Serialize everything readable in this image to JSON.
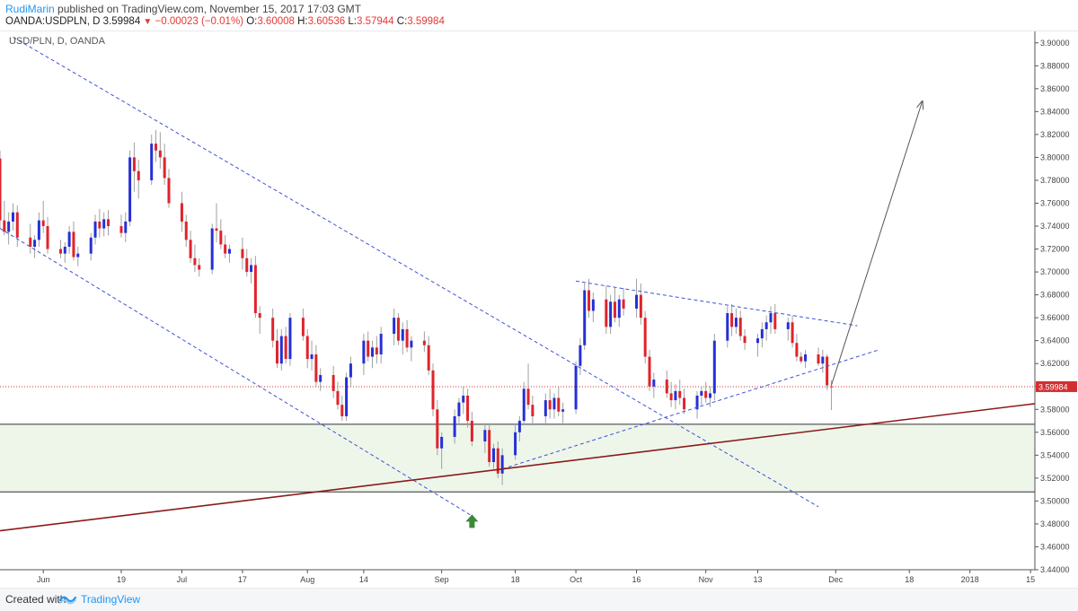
{
  "header": {
    "author": "RudiMarin",
    "published_text": "published on TradingView.com, November 15, 2017 17:03 GMT",
    "symbol": "OANDA:USDPLN, D",
    "last_price": "3.59984",
    "change": "−0.00023 (−0.01%)",
    "o_label": "O:",
    "o_value": "3.60008",
    "h_label": "H:",
    "h_value": "3.60536",
    "l_label": "L:",
    "l_value": "3.57944",
    "c_label": "C:",
    "c_value": "3.59984"
  },
  "footer": {
    "created_with": "Created with",
    "brand": "TradingView"
  },
  "chart_data": {
    "type": "candlestick",
    "symbol_label": "USD/PLN, D, OANDA",
    "ylim": [
      3.44,
      3.91
    ],
    "yticks": [
      3.44,
      3.46,
      3.48,
      3.5,
      3.52,
      3.54,
      3.56,
      3.58,
      3.6,
      3.62,
      3.64,
      3.66,
      3.68,
      3.7,
      3.72,
      3.74,
      3.76,
      3.78,
      3.8,
      3.82,
      3.84,
      3.86,
      3.88,
      3.9
    ],
    "ytick_labels": [
      "3.44000",
      "3.46000",
      "3.48000",
      "3.50000",
      "3.52000",
      "3.54000",
      "3.56000",
      "3.58000",
      "3.60000",
      "3.62000",
      "3.64000",
      "3.66000",
      "3.68000",
      "3.70000",
      "3.72000",
      "3.74000",
      "3.76000",
      "3.78000",
      "3.80000",
      "3.82000",
      "3.84000",
      "3.86000",
      "3.88000",
      "3.90000"
    ],
    "x_range": [
      "2017-05-22",
      "2018-01-16"
    ],
    "x_labels": [
      {
        "date": "2017-06-01",
        "label": "Jun"
      },
      {
        "date": "2017-06-19",
        "label": "19"
      },
      {
        "date": "2017-07-03",
        "label": "Jul"
      },
      {
        "date": "2017-07-17",
        "label": "17"
      },
      {
        "date": "2017-08-01",
        "label": "Aug"
      },
      {
        "date": "2017-08-14",
        "label": "14"
      },
      {
        "date": "2017-09-01",
        "label": "Sep"
      },
      {
        "date": "2017-09-18",
        "label": "18"
      },
      {
        "date": "2017-10-02",
        "label": "Oct"
      },
      {
        "date": "2017-10-16",
        "label": "16"
      },
      {
        "date": "2017-11-01",
        "label": "Nov"
      },
      {
        "date": "2017-11-13",
        "label": "13"
      },
      {
        "date": "2017-12-01",
        "label": "Dec"
      },
      {
        "date": "2017-12-18",
        "label": "18"
      },
      {
        "date": "2018-01-01",
        "label": "2018"
      },
      {
        "date": "2018-01-15",
        "label": "15"
      }
    ],
    "current_price": 3.59984,
    "current_price_label": "3.59984",
    "bullish_color": "#2530d6",
    "bearish_color": "#e0232b",
    "wick_color": "#a0a0a0",
    "candles": [
      [
        "2017-05-22",
        3.799,
        3.806,
        3.738,
        3.745
      ],
      [
        "2017-05-23",
        3.745,
        3.762,
        3.732,
        3.735
      ],
      [
        "2017-05-24",
        3.735,
        3.752,
        3.724,
        3.744
      ],
      [
        "2017-05-25",
        3.744,
        3.76,
        3.736,
        3.752
      ],
      [
        "2017-05-26",
        3.752,
        3.758,
        3.722,
        3.73
      ],
      [
        "2017-05-29",
        3.73,
        3.742,
        3.716,
        3.722
      ],
      [
        "2017-05-30",
        3.722,
        3.732,
        3.712,
        3.728
      ],
      [
        "2017-05-31",
        3.728,
        3.752,
        3.722,
        3.745
      ],
      [
        "2017-06-01",
        3.745,
        3.762,
        3.734,
        3.74
      ],
      [
        "2017-06-02",
        3.74,
        3.748,
        3.716,
        3.72
      ],
      [
        "2017-06-05",
        3.72,
        3.728,
        3.712,
        3.716
      ],
      [
        "2017-06-06",
        3.716,
        3.726,
        3.708,
        3.722
      ],
      [
        "2017-06-07",
        3.722,
        3.74,
        3.716,
        3.735
      ],
      [
        "2017-06-08",
        3.735,
        3.744,
        3.71,
        3.713
      ],
      [
        "2017-06-09",
        3.713,
        3.722,
        3.705,
        3.716
      ],
      [
        "2017-06-12",
        3.716,
        3.734,
        3.71,
        3.73
      ],
      [
        "2017-06-13",
        3.73,
        3.75,
        3.724,
        3.744
      ],
      [
        "2017-06-14",
        3.744,
        3.755,
        3.73,
        3.738
      ],
      [
        "2017-06-15",
        3.738,
        3.752,
        3.731,
        3.746
      ],
      [
        "2017-06-16",
        3.746,
        3.754,
        3.732,
        3.74
      ],
      [
        "2017-06-19",
        3.74,
        3.75,
        3.73,
        3.734
      ],
      [
        "2017-06-20",
        3.734,
        3.752,
        3.726,
        3.744
      ],
      [
        "2017-06-21",
        3.744,
        3.806,
        3.74,
        3.8
      ],
      [
        "2017-06-22",
        3.8,
        3.813,
        3.77,
        3.788
      ],
      [
        "2017-06-23",
        3.788,
        3.798,
        3.764,
        3.78
      ],
      [
        "2017-06-26",
        3.78,
        3.82,
        3.776,
        3.812
      ],
      [
        "2017-06-27",
        3.812,
        3.824,
        3.796,
        3.806
      ],
      [
        "2017-06-28",
        3.806,
        3.822,
        3.79,
        3.8
      ],
      [
        "2017-06-29",
        3.8,
        3.812,
        3.776,
        3.782
      ],
      [
        "2017-06-30",
        3.782,
        3.79,
        3.756,
        3.76
      ],
      [
        "2017-07-03",
        3.76,
        3.77,
        3.735,
        3.744
      ],
      [
        "2017-07-04",
        3.744,
        3.75,
        3.722,
        3.728
      ],
      [
        "2017-07-05",
        3.728,
        3.736,
        3.708,
        3.712
      ],
      [
        "2017-07-06",
        3.712,
        3.724,
        3.7,
        3.706
      ],
      [
        "2017-07-07",
        3.706,
        3.712,
        3.696,
        3.702
      ],
      [
        "2017-07-10",
        3.702,
        3.742,
        3.698,
        3.738
      ],
      [
        "2017-07-11",
        3.738,
        3.76,
        3.726,
        3.736
      ],
      [
        "2017-07-12",
        3.736,
        3.746,
        3.72,
        3.724
      ],
      [
        "2017-07-13",
        3.724,
        3.732,
        3.712,
        3.716
      ],
      [
        "2017-07-14",
        3.716,
        3.724,
        3.708,
        3.72
      ],
      [
        "2017-07-17",
        3.72,
        3.73,
        3.702,
        3.712
      ],
      [
        "2017-07-18",
        3.712,
        3.72,
        3.696,
        3.7
      ],
      [
        "2017-07-19",
        3.7,
        3.712,
        3.69,
        3.706
      ],
      [
        "2017-07-20",
        3.706,
        3.714,
        3.66,
        3.664
      ],
      [
        "2017-07-21",
        3.664,
        3.67,
        3.646,
        3.66
      ],
      [
        "2017-07-24",
        3.66,
        3.668,
        3.634,
        3.64
      ],
      [
        "2017-07-25",
        3.64,
        3.65,
        3.616,
        3.62
      ],
      [
        "2017-07-26",
        3.62,
        3.65,
        3.614,
        3.644
      ],
      [
        "2017-07-27",
        3.644,
        3.652,
        3.62,
        3.624
      ],
      [
        "2017-07-28",
        3.624,
        3.664,
        3.618,
        3.66
      ],
      [
        "2017-07-31",
        3.66,
        3.668,
        3.64,
        3.644
      ],
      [
        "2017-08-01",
        3.644,
        3.65,
        3.616,
        3.624
      ],
      [
        "2017-08-02",
        3.624,
        3.64,
        3.614,
        3.628
      ],
      [
        "2017-08-03",
        3.628,
        3.636,
        3.6,
        3.604
      ],
      [
        "2017-08-04",
        3.604,
        3.616,
        3.596,
        3.61
      ],
      [
        "2017-08-07",
        3.61,
        3.618,
        3.59,
        3.596
      ],
      [
        "2017-08-08",
        3.596,
        3.604,
        3.58,
        3.584
      ],
      [
        "2017-08-09",
        3.584,
        3.592,
        3.57,
        3.574
      ],
      [
        "2017-08-10",
        3.574,
        3.612,
        3.57,
        3.608
      ],
      [
        "2017-08-11",
        3.608,
        3.626,
        3.6,
        3.62
      ],
      [
        "2017-08-14",
        3.62,
        3.646,
        3.61,
        3.64
      ],
      [
        "2017-08-15",
        3.64,
        3.648,
        3.622,
        3.626
      ],
      [
        "2017-08-16",
        3.626,
        3.64,
        3.616,
        3.634
      ],
      [
        "2017-08-17",
        3.634,
        3.644,
        3.62,
        3.628
      ],
      [
        "2017-08-18",
        3.628,
        3.652,
        3.62,
        3.646
      ],
      [
        "2017-08-21",
        3.646,
        3.668,
        3.636,
        3.66
      ],
      [
        "2017-08-22",
        3.66,
        3.664,
        3.636,
        3.64
      ],
      [
        "2017-08-23",
        3.64,
        3.656,
        3.628,
        3.65
      ],
      [
        "2017-08-24",
        3.65,
        3.658,
        3.63,
        3.634
      ],
      [
        "2017-08-25",
        3.634,
        3.644,
        3.622,
        3.64
      ],
      [
        "2017-08-28",
        3.64,
        3.648,
        3.63,
        3.636
      ],
      [
        "2017-08-29",
        3.636,
        3.644,
        3.61,
        3.614
      ],
      [
        "2017-08-30",
        3.614,
        3.62,
        3.574,
        3.58
      ],
      [
        "2017-08-31",
        3.58,
        3.588,
        3.54,
        3.546
      ],
      [
        "2017-09-01",
        3.546,
        3.56,
        3.528,
        3.556
      ],
      [
        "2017-09-04",
        3.556,
        3.58,
        3.55,
        3.574
      ],
      [
        "2017-09-05",
        3.574,
        3.59,
        3.568,
        3.586
      ],
      [
        "2017-09-06",
        3.586,
        3.6,
        3.576,
        3.592
      ],
      [
        "2017-09-07",
        3.592,
        3.598,
        3.564,
        3.57
      ],
      [
        "2017-09-08",
        3.57,
        3.578,
        3.548,
        3.552
      ],
      [
        "2017-09-11",
        3.552,
        3.568,
        3.542,
        3.562
      ],
      [
        "2017-09-12",
        3.562,
        3.568,
        3.53,
        3.534
      ],
      [
        "2017-09-13",
        3.534,
        3.55,
        3.528,
        3.546
      ],
      [
        "2017-09-14",
        3.546,
        3.552,
        3.52,
        3.524
      ],
      [
        "2017-09-15",
        3.524,
        3.546,
        3.514,
        3.54
      ],
      [
        "2017-09-18",
        3.54,
        3.566,
        3.536,
        3.56
      ],
      [
        "2017-09-19",
        3.56,
        3.574,
        3.552,
        3.57
      ],
      [
        "2017-09-20",
        3.57,
        3.604,
        3.566,
        3.598
      ],
      [
        "2017-09-21",
        3.598,
        3.62,
        3.58,
        3.584
      ],
      [
        "2017-09-22",
        3.584,
        3.592,
        3.566,
        3.574
      ],
      [
        "2017-09-25",
        3.574,
        3.594,
        3.566,
        3.588
      ],
      [
        "2017-09-26",
        3.588,
        3.598,
        3.572,
        3.58
      ],
      [
        "2017-09-27",
        3.58,
        3.594,
        3.572,
        3.59
      ],
      [
        "2017-09-28",
        3.59,
        3.6,
        3.574,
        3.578
      ],
      [
        "2017-09-29",
        3.578,
        3.586,
        3.568,
        3.58
      ],
      [
        "2017-10-02",
        3.58,
        3.622,
        3.576,
        3.618
      ],
      [
        "2017-10-03",
        3.618,
        3.642,
        3.61,
        3.636
      ],
      [
        "2017-10-04",
        3.636,
        3.69,
        3.632,
        3.684
      ],
      [
        "2017-10-05",
        3.684,
        3.694,
        3.66,
        3.666
      ],
      [
        "2017-10-06",
        3.666,
        3.682,
        3.656,
        3.676
      ],
      [
        "2017-10-09",
        3.676,
        3.688,
        3.646,
        3.652
      ],
      [
        "2017-10-10",
        3.652,
        3.68,
        3.646,
        3.674
      ],
      [
        "2017-10-11",
        3.674,
        3.686,
        3.656,
        3.66
      ],
      [
        "2017-10-12",
        3.66,
        3.68,
        3.652,
        3.676
      ],
      [
        "2017-10-13",
        3.676,
        3.686,
        3.662,
        3.668
      ],
      [
        "2017-10-16",
        3.668,
        3.694,
        3.66,
        3.68
      ],
      [
        "2017-10-17",
        3.68,
        3.69,
        3.654,
        3.66
      ],
      [
        "2017-10-18",
        3.66,
        3.666,
        3.62,
        3.626
      ],
      [
        "2017-10-19",
        3.626,
        3.632,
        3.596,
        3.6
      ],
      [
        "2017-10-20",
        3.6,
        3.612,
        3.59,
        3.606
      ],
      [
        "2017-10-23",
        3.606,
        3.614,
        3.59,
        3.594
      ],
      [
        "2017-10-24",
        3.594,
        3.604,
        3.582,
        3.588
      ],
      [
        "2017-10-25",
        3.588,
        3.602,
        3.58,
        3.596
      ],
      [
        "2017-10-26",
        3.596,
        3.606,
        3.584,
        3.59
      ],
      [
        "2017-10-27",
        3.59,
        3.598,
        3.576,
        3.58
      ],
      [
        "2017-10-30",
        3.58,
        3.596,
        3.572,
        3.592
      ],
      [
        "2017-10-31",
        3.592,
        3.6,
        3.584,
        3.596
      ],
      [
        "2017-11-01",
        3.596,
        3.604,
        3.586,
        3.59
      ],
      [
        "2017-11-02",
        3.59,
        3.6,
        3.582,
        3.594
      ],
      [
        "2017-11-03",
        3.594,
        3.646,
        3.588,
        3.64
      ],
      [
        "2017-11-06",
        3.64,
        3.67,
        3.634,
        3.664
      ],
      [
        "2017-11-07",
        3.664,
        3.672,
        3.644,
        3.652
      ],
      [
        "2017-11-08",
        3.652,
        3.668,
        3.646,
        3.66
      ],
      [
        "2017-11-09",
        3.66,
        3.666,
        3.64,
        3.644
      ],
      [
        "2017-11-10",
        3.644,
        3.65,
        3.632,
        3.638
      ],
      [
        "2017-11-13",
        3.638,
        3.646,
        3.626,
        3.642
      ],
      [
        "2017-11-14",
        3.642,
        3.656,
        3.634,
        3.65
      ],
      [
        "2017-11-15",
        3.65,
        3.662,
        3.64,
        3.656
      ],
      [
        "2017-11-16",
        3.656,
        3.67,
        3.646,
        3.664
      ],
      [
        "2017-11-17",
        3.664,
        3.672,
        3.646,
        3.65
      ],
      [
        "2017-11-20",
        3.65,
        3.66,
        3.64,
        3.656
      ],
      [
        "2017-11-21",
        3.656,
        3.662,
        3.634,
        3.638
      ],
      [
        "2017-11-22",
        3.638,
        3.646,
        3.622,
        3.626
      ],
      [
        "2017-11-23",
        3.626,
        3.63,
        3.62,
        3.622
      ],
      [
        "2017-11-24",
        3.622,
        3.632,
        3.616,
        3.628
      ],
      [
        "2017-11-27",
        3.628,
        3.634,
        3.618,
        3.62
      ],
      [
        "2017-11-28",
        3.62,
        3.632,
        3.612,
        3.626
      ],
      [
        "2017-11-29",
        3.626,
        3.628,
        3.597,
        3.601
      ],
      [
        "2017-11-30",
        3.60008,
        3.60536,
        3.57944,
        3.59984
      ]
    ],
    "trendlines": [
      {
        "name": "upper-channel-line",
        "color": "#3f51d9",
        "dash": true,
        "points": [
          [
            "2017-05-25",
            3.905
          ],
          [
            "2017-11-27",
            3.495
          ]
        ]
      },
      {
        "name": "lower-channel-line",
        "color": "#3f51d9",
        "dash": true,
        "points": [
          [
            "2017-05-22",
            3.738
          ],
          [
            "2017-09-08",
            3.487
          ]
        ]
      },
      {
        "name": "triangle-upper-line",
        "color": "#3f51d9",
        "dash": true,
        "points": [
          [
            "2017-10-02",
            3.692
          ],
          [
            "2017-12-06",
            3.653
          ]
        ]
      },
      {
        "name": "triangle-lower-line",
        "color": "#3f51d9",
        "dash": true,
        "points": [
          [
            "2017-09-15",
            3.528
          ],
          [
            "2017-12-11",
            3.632
          ]
        ]
      },
      {
        "name": "long-term-support-line",
        "color": "#8b1a1a",
        "dash": false,
        "points": [
          [
            "2017-05-22",
            3.474
          ],
          [
            "2018-01-16",
            3.585
          ]
        ]
      },
      {
        "name": "projection-arrow",
        "color": "#555555",
        "dash": false,
        "arrow": true,
        "points": [
          [
            "2017-11-30",
            3.601
          ],
          [
            "2017-12-21",
            3.849
          ]
        ]
      }
    ],
    "support_zone": {
      "y_low": 3.508,
      "y_high": 3.567,
      "fill": "#eef6ea"
    },
    "marker": {
      "type": "up-arrow",
      "date": "2017-09-08",
      "price": 3.482,
      "color": "#3a8a3a"
    }
  }
}
